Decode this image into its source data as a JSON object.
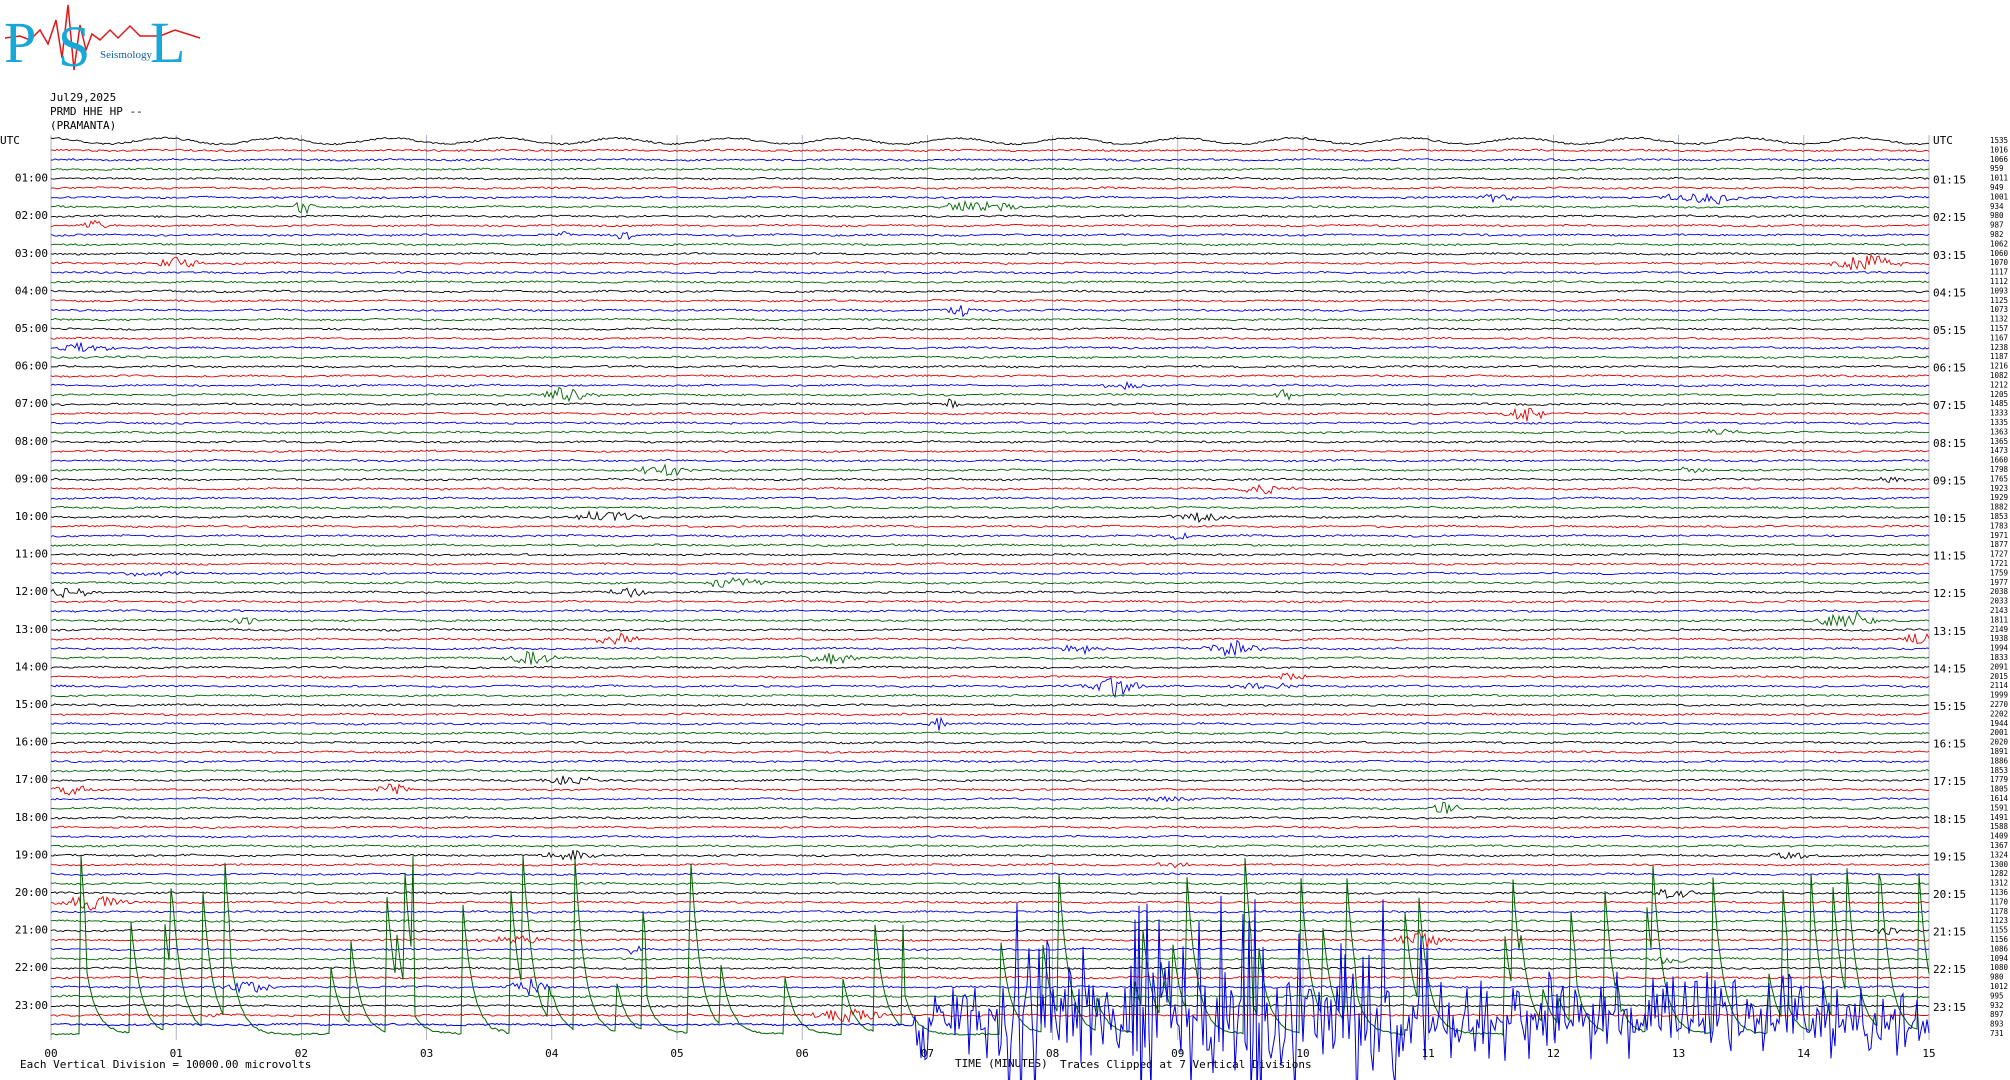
{
  "logo": {
    "letters": [
      "P",
      "S",
      "L"
    ],
    "subtitle": "Seismology"
  },
  "header": {
    "date": "Jul29,2025",
    "station": "PRMD HHE HP --",
    "site": "(PRAMANTA)"
  },
  "left_labels": [
    "UTC",
    "01:00",
    "02:00",
    "03:00",
    "04:00",
    "05:00",
    "06:00",
    "07:00",
    "08:00",
    "09:00",
    "10:00",
    "11:00",
    "12:00",
    "13:00",
    "14:00",
    "15:00",
    "16:00",
    "17:00",
    "18:00",
    "19:00",
    "20:00",
    "21:00",
    "22:00",
    "23:00"
  ],
  "right_labels": [
    "UTC",
    "01:15",
    "02:15",
    "03:15",
    "04:15",
    "05:15",
    "06:15",
    "07:15",
    "08:15",
    "09:15",
    "10:15",
    "11:15",
    "12:15",
    "13:15",
    "14:15",
    "15:15",
    "16:15",
    "17:15",
    "18:15",
    "19:15",
    "20:15",
    "21:15",
    "22:15",
    "23:15"
  ],
  "line_max": [
    1535,
    1016,
    1066,
    959,
    1011,
    949,
    1001,
    934,
    980,
    987,
    982,
    1062,
    1060,
    1070,
    1117,
    1112,
    1093,
    1125,
    1073,
    1132,
    1157,
    1167,
    1238,
    1187,
    1216,
    1082,
    1212,
    1205,
    1485,
    1333,
    1335,
    1363,
    1365,
    1473,
    1660,
    1798,
    1765,
    1923,
    1929,
    1882,
    1853,
    1783,
    1971,
    1877,
    1727,
    1721,
    1759,
    1977,
    2038,
    2033,
    2143,
    1811,
    2149,
    1938,
    1994,
    1833,
    2091,
    2015,
    2114,
    1999,
    2270,
    2202,
    1944,
    2001,
    2020,
    1891,
    1886,
    1853,
    1779,
    1805,
    1614,
    1591,
    1491,
    1588,
    1409,
    1367,
    1324,
    1300,
    1282,
    1312,
    1136,
    1170,
    1178,
    1123,
    1155,
    1156,
    1086,
    1094,
    1080,
    980,
    1012,
    995,
    932,
    897,
    893,
    731
  ],
  "x_ticks": [
    "00",
    "01",
    "02",
    "03",
    "04",
    "05",
    "06",
    "07",
    "08",
    "09",
    "10",
    "11",
    "12",
    "13",
    "14",
    "15"
  ],
  "x_title": "TIME (MINUTES)",
  "footer": {
    "scale": "Each Vertical Division = 10000.00 microvolts",
    "note": "Traces Clipped at 7 Vertical Divisions"
  },
  "trace_colors": [
    "#000000",
    "#e00000",
    "#0000e0",
    "#006400"
  ]
}
